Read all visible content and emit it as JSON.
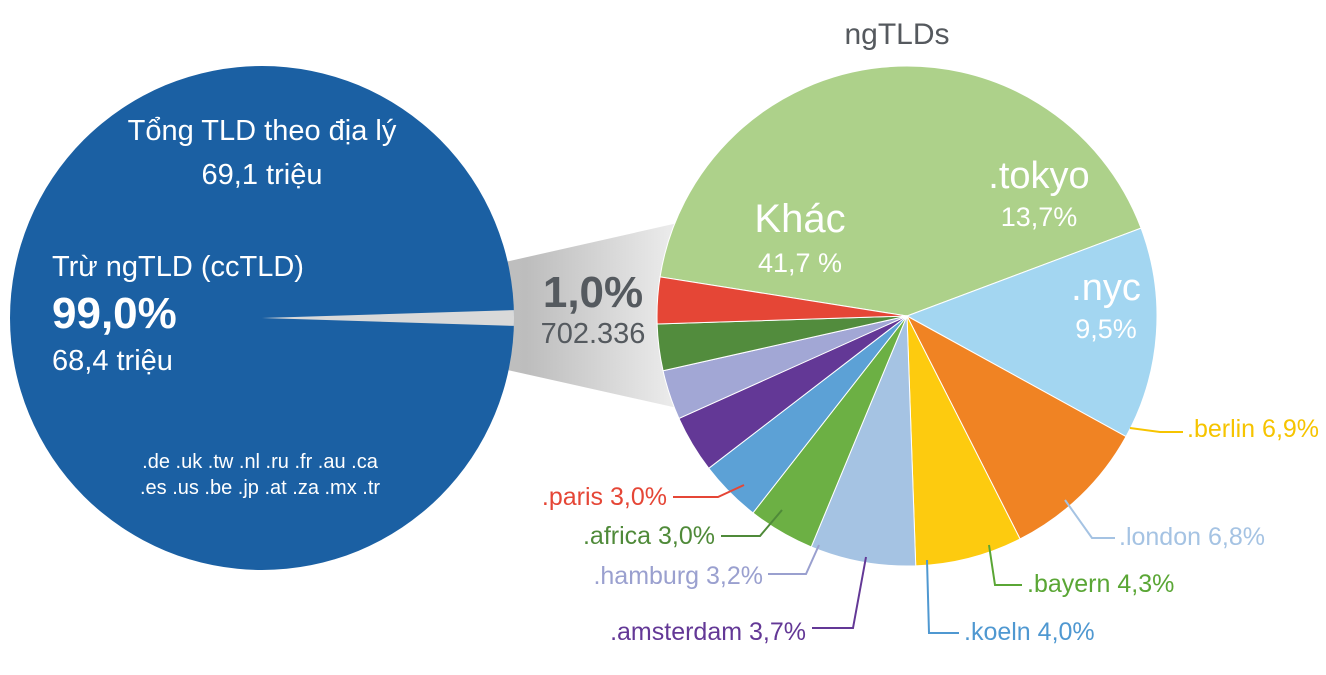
{
  "chart_data": [
    {
      "type": "pie",
      "title": "",
      "text": {
        "heading": "Tổng TLD theo địa lý",
        "total": "69,1 triệu",
        "subset_label": "Trừ ngTLD (ccTLD)",
        "subset_pct": "99,0%",
        "subset_count": "68,4 triệu",
        "cctld_line1": ".de .uk .tw .nl .ru .fr .au .ca",
        "cctld_line2": ".es .us .be .jp .at .za .mx .tr"
      },
      "slices": [
        {
          "label": "Trừ ngTLD (ccTLD)",
          "value": 99.0
        },
        {
          "label": "ngTLDs",
          "value": 1.0,
          "count_label": "702.336",
          "pct_label": "1,0%"
        }
      ],
      "colors": {
        "circle": "#1b60a3",
        "callout": "#555a5f"
      }
    },
    {
      "type": "pie",
      "title": "ngTLDs",
      "slices": [
        {
          "label": "Khác",
          "value": 41.7,
          "pct_label": "41,7 %",
          "color": "#add18a",
          "text_color": "#ffffff"
        },
        {
          "label": ".tokyo",
          "value": 13.7,
          "pct_label": "13,7%",
          "color": "#a3d6f1",
          "text_color": "#ffffff"
        },
        {
          "label": ".nyc",
          "value": 9.5,
          "pct_label": "9,5%",
          "color": "#f08323",
          "text_color": "#ffffff"
        },
        {
          "label": ".berlin",
          "value": 6.9,
          "pct_label": "6,9%",
          "color": "#fdcb0f",
          "text_color": "#f6c400"
        },
        {
          "label": ".london",
          "value": 6.8,
          "pct_label": "6,8%",
          "color": "#a5c3e3",
          "text_color": "#a5c3e3"
        },
        {
          "label": ".bayern",
          "value": 4.3,
          "pct_label": "4,3%",
          "color": "#6cb044",
          "text_color": "#5aa635"
        },
        {
          "label": ".koeln",
          "value": 4.0,
          "pct_label": "4,0%",
          "color": "#5ca1d6",
          "text_color": "#4f98d1"
        },
        {
          "label": ".amsterdam",
          "value": 3.7,
          "pct_label": "3,7%",
          "color": "#633896",
          "text_color": "#633896"
        },
        {
          "label": ".hamburg",
          "value": 3.2,
          "pct_label": "3,2%",
          "color": "#a2a7d5",
          "text_color": "#9aa0cf"
        },
        {
          "label": ".africa",
          "value": 3.0,
          "pct_label": "3,0%",
          "color": "#528c3d",
          "text_color": "#4f8a39"
        },
        {
          "label": ".paris",
          "value": 3.0,
          "pct_label": "3,0%",
          "color": "#e54636",
          "text_color": "#e54636"
        }
      ]
    }
  ]
}
